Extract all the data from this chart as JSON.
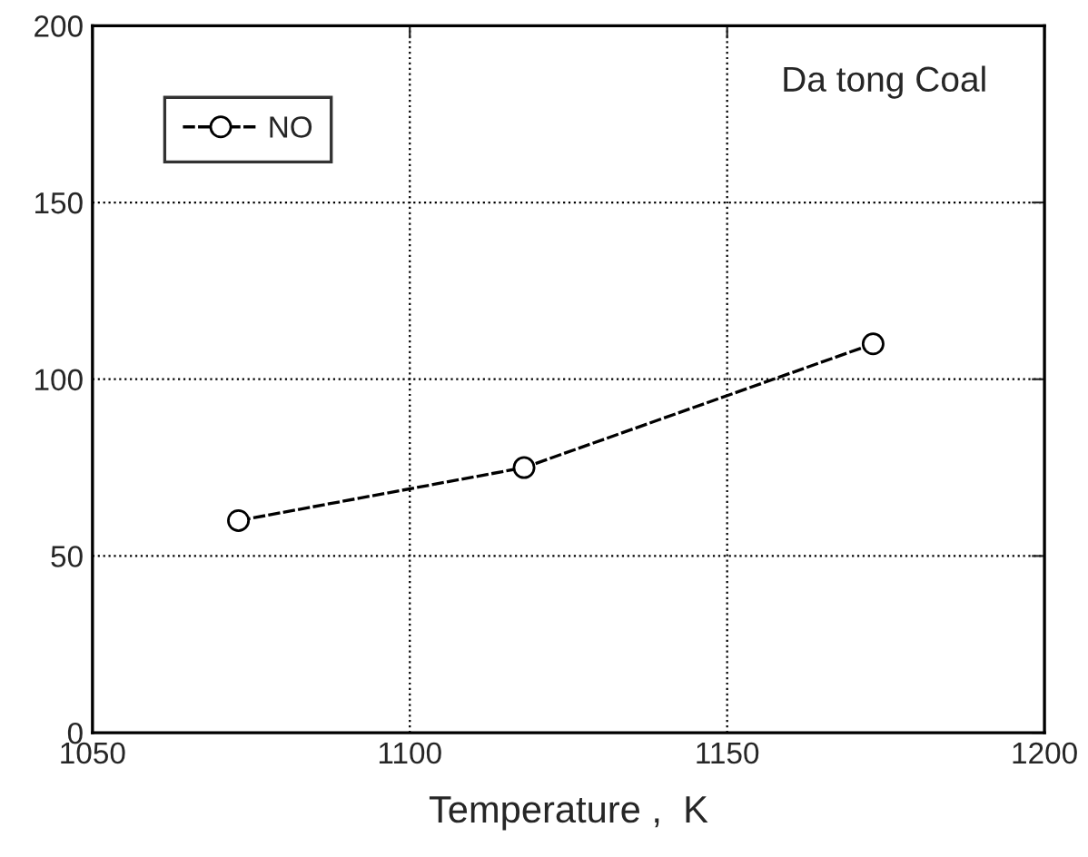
{
  "chart_data": {
    "type": "line",
    "xlabel": "Temperature ,  K",
    "x": [
      1073,
      1118,
      1173
    ],
    "series": [
      {
        "name": "NO",
        "color": "#000000",
        "values": [
          60,
          75,
          110
        ]
      }
    ],
    "xlim": [
      1050,
      1200
    ],
    "xticks": [
      1050,
      1100,
      1150,
      1200
    ],
    "ylim": [
      0,
      200
    ],
    "yticks": [
      0,
      50,
      100,
      150,
      200
    ],
    "grid": true,
    "legend": "top left",
    "marker": "circle",
    "line_style": "dashed",
    "annotations": [
      "Da tong Coal"
    ]
  }
}
